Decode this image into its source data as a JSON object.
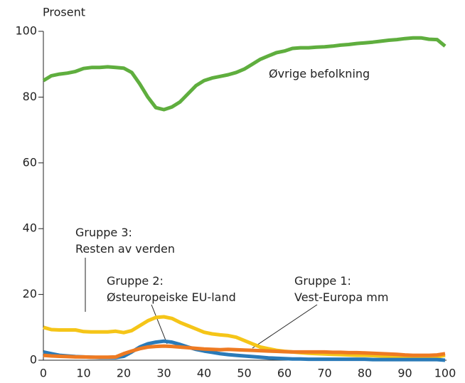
{
  "chart_data": {
    "type": "line",
    "ylabel": "Prosent",
    "x": [
      0,
      2,
      4,
      6,
      8,
      10,
      12,
      14,
      16,
      18,
      20,
      22,
      24,
      26,
      28,
      30,
      32,
      34,
      36,
      38,
      40,
      42,
      44,
      46,
      48,
      50,
      52,
      54,
      56,
      58,
      60,
      62,
      64,
      66,
      68,
      70,
      72,
      74,
      76,
      78,
      80,
      82,
      84,
      86,
      88,
      90,
      92,
      94,
      96,
      98,
      100
    ],
    "series": [
      {
        "name": "Øvrige befolkning",
        "color": "#5fae3e",
        "values": [
          85,
          86.5,
          87,
          87.3,
          87.8,
          88.7,
          89,
          89,
          89.2,
          89,
          88.8,
          87.5,
          84,
          80,
          76.8,
          76.2,
          77,
          78.5,
          81,
          83.5,
          85,
          85.8,
          86.3,
          86.8,
          87.5,
          88.5,
          90,
          91.5,
          92.5,
          93.5,
          94,
          94.8,
          95,
          95,
          95.2,
          95.3,
          95.5,
          95.8,
          96,
          96.3,
          96.5,
          96.7,
          97,
          97.3,
          97.5,
          97.8,
          98,
          98,
          97.6,
          97.5,
          95.5
        ]
      },
      {
        "name": "Gruppe 3:\nResten av verden",
        "color": "#f5c518",
        "values": [
          10,
          9.3,
          9.2,
          9.2,
          9.2,
          8.7,
          8.6,
          8.6,
          8.6,
          8.8,
          8.4,
          9,
          10.5,
          12,
          13,
          13.2,
          12.7,
          11.5,
          10.5,
          9.5,
          8.5,
          8,
          7.7,
          7.5,
          7,
          6,
          5,
          4,
          3.5,
          3,
          2.7,
          2.5,
          2.3,
          2.1,
          2,
          1.9,
          1.8,
          1.7,
          1.6,
          1.5,
          1.5,
          1.4,
          1.3,
          1.2,
          1.2,
          1.1,
          1,
          1,
          1,
          1,
          1.5
        ]
      },
      {
        "name": "Gruppe 2:\nØsteuropeiske EU-land",
        "color": "#2a7ab8",
        "values": [
          2.5,
          2,
          1.5,
          1.3,
          1.1,
          1,
          0.9,
          0.8,
          0.8,
          0.8,
          1.2,
          2.5,
          4,
          5,
          5.5,
          5.8,
          5.5,
          4.8,
          4,
          3.3,
          2.8,
          2.4,
          2,
          1.7,
          1.5,
          1.3,
          1.1,
          0.9,
          0.7,
          0.6,
          0.5,
          0.4,
          0.4,
          0.3,
          0.3,
          0.3,
          0.3,
          0.3,
          0.3,
          0.3,
          0.3,
          0.2,
          0.2,
          0.2,
          0.2,
          0.2,
          0.2,
          0.2,
          0.2,
          0.2,
          0
        ]
      },
      {
        "name": "Gruppe 1:\nVest-Europa mm",
        "color": "#ee7a22",
        "values": [
          1.5,
          1.3,
          1.2,
          1.1,
          1,
          1,
          0.9,
          0.9,
          0.9,
          1,
          2,
          2.8,
          3.5,
          4,
          4.2,
          4.3,
          4.2,
          4,
          3.8,
          3.6,
          3.4,
          3.3,
          3.2,
          3.3,
          3.2,
          3.1,
          3,
          2.9,
          2.8,
          2.7,
          2.6,
          2.5,
          2.5,
          2.5,
          2.5,
          2.5,
          2.4,
          2.4,
          2.3,
          2.3,
          2.2,
          2.1,
          2,
          1.9,
          1.8,
          1.6,
          1.5,
          1.5,
          1.5,
          1.6,
          2
        ]
      }
    ],
    "xlim": [
      0,
      100
    ],
    "xticks": [
      0,
      10,
      20,
      30,
      40,
      50,
      60,
      70,
      80,
      90,
      100
    ],
    "ylim": [
      0,
      100
    ],
    "yticks": [
      0,
      20,
      40,
      60,
      80,
      100
    ]
  }
}
